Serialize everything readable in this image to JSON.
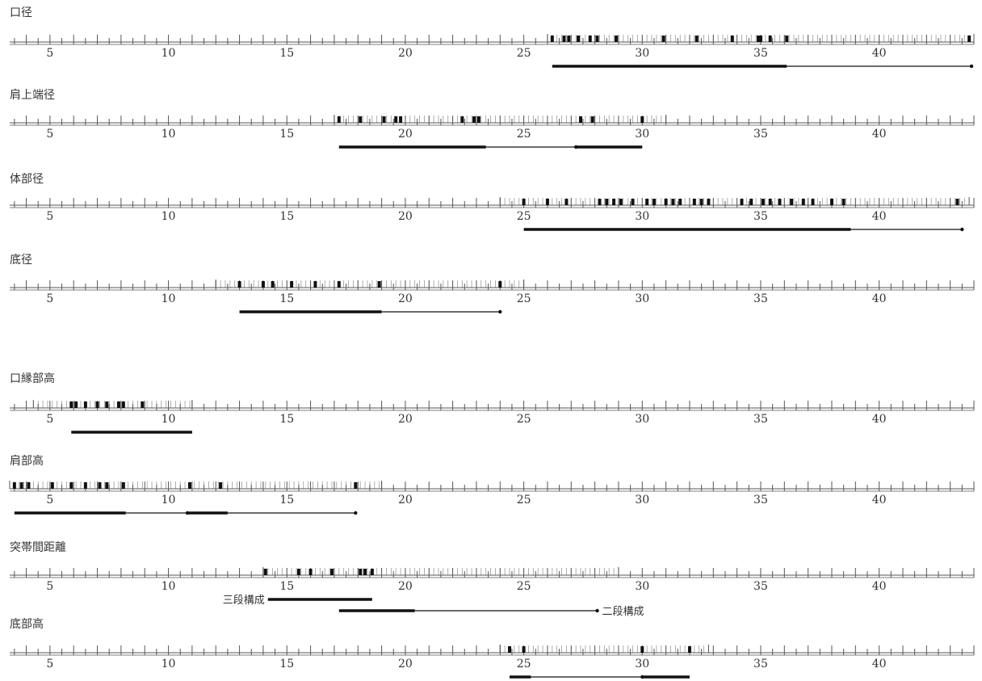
{
  "chart_data": {
    "type": "range-histogram",
    "axis": {
      "min": 3.3,
      "max": 44,
      "labeled_ticks": [
        5,
        10,
        15,
        20,
        25,
        30,
        35,
        40
      ],
      "minor_step": 1,
      "shading_step": 0.2
    },
    "colors": {
      "axis": "#555555",
      "shading": "#9a9a9a",
      "mark": "#111111",
      "bar": "#111111",
      "text": "#333333"
    },
    "panels": [
      {
        "title": "口径",
        "shaded_range": [
          26,
          44
        ],
        "observations": [
          26.2,
          26.7,
          26.9,
          27.3,
          27.8,
          28.1,
          28.9,
          30.9,
          32.3,
          33.8,
          34.9,
          35.0,
          35.4,
          36.1,
          43.8
        ],
        "ranges": [
          {
            "from": 26.2,
            "to": 36.1,
            "style": "thick"
          },
          {
            "from": 36.1,
            "to": 43.9,
            "style": "thin"
          }
        ]
      },
      {
        "title": "肩上端径",
        "shaded_range": [
          17,
          31
        ],
        "observations": [
          17.2,
          18.1,
          19.1,
          19.6,
          19.8,
          22.4,
          22.9,
          23.1,
          27.4,
          27.9,
          30.0
        ],
        "ranges": [
          {
            "from": 17.2,
            "to": 23.4,
            "style": "thick"
          },
          {
            "from": 23.4,
            "to": 27.2,
            "style": "thin"
          },
          {
            "from": 27.2,
            "to": 30.0,
            "style": "thick"
          }
        ]
      },
      {
        "title": "体部径",
        "shaded_range": [
          24,
          43.8
        ],
        "observations": [
          25.0,
          26.0,
          26.8,
          28.2,
          28.5,
          28.8,
          29.1,
          29.6,
          30.2,
          30.5,
          31.0,
          31.3,
          31.6,
          32.2,
          32.5,
          32.8,
          34.2,
          34.6,
          35.1,
          35.4,
          35.8,
          36.3,
          36.8,
          37.2,
          38.0,
          38.5,
          43.3
        ],
        "ranges": [
          {
            "from": 25.0,
            "to": 38.8,
            "style": "thick"
          },
          {
            "from": 38.8,
            "to": 43.5,
            "style": "thin"
          }
        ]
      },
      {
        "title": "底径",
        "shaded_range": [
          12,
          25
        ],
        "observations": [
          13.0,
          14.0,
          14.4,
          15.2,
          16.2,
          17.2,
          18.9,
          24.0
        ],
        "ranges": [
          {
            "from": 13.0,
            "to": 19.0,
            "style": "thick"
          },
          {
            "from": 19.0,
            "to": 24.0,
            "style": "thin"
          }
        ]
      },
      {
        "title": "口縁部高",
        "shaded_range": [
          4.3,
          11
        ],
        "observations": [
          5.9,
          6.1,
          6.5,
          7.0,
          7.4,
          7.9,
          8.1,
          8.9
        ],
        "ranges": [
          {
            "from": 5.9,
            "to": 11.0,
            "style": "thick"
          }
        ]
      },
      {
        "title": "肩部高",
        "shaded_range": [
          3.3,
          19
        ],
        "observations": [
          3.5,
          3.8,
          4.1,
          5.1,
          5.9,
          6.5,
          7.1,
          7.4,
          8.1,
          10.9,
          12.2,
          17.9
        ],
        "ranges": [
          {
            "from": 3.5,
            "to": 8.2,
            "style": "thick"
          },
          {
            "from": 8.2,
            "to": 10.8,
            "style": "thin"
          },
          {
            "from": 10.8,
            "to": 12.5,
            "style": "thick"
          },
          {
            "from": 12.5,
            "to": 17.9,
            "style": "thin"
          }
        ]
      },
      {
        "title": "突帯間距離",
        "shaded_range": [
          14,
          29
        ],
        "observations": [
          14.1,
          15.5,
          16.0,
          16.9,
          18.1,
          18.3,
          18.6
        ],
        "ranges": [
          {
            "from": 14.2,
            "to": 18.6,
            "style": "thick",
            "label": "三段構成",
            "label_side": "left",
            "row": 0
          },
          {
            "from": 17.2,
            "to": 20.4,
            "style": "thick",
            "row": 1
          },
          {
            "from": 20.4,
            "to": 28.1,
            "style": "thin",
            "label": "二段構成",
            "label_side": "right",
            "row": 1
          }
        ]
      },
      {
        "title": "底部高",
        "shaded_range": [
          24,
          32.8
        ],
        "observations": [
          24.4,
          25.0,
          30.0,
          32.0
        ],
        "ranges": [
          {
            "from": 24.4,
            "to": 25.3,
            "style": "thick"
          },
          {
            "from": 25.3,
            "to": 30.0,
            "style": "thin"
          },
          {
            "from": 30.0,
            "to": 32.0,
            "style": "thick"
          }
        ]
      }
    ]
  }
}
